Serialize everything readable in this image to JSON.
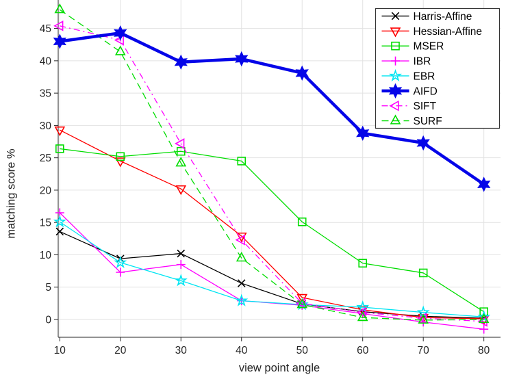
{
  "chart_data": {
    "type": "line",
    "title": "",
    "xlabel": "view point angle",
    "ylabel": "matching score %",
    "x": [
      10,
      20,
      30,
      40,
      50,
      60,
      70,
      80
    ],
    "xticks": [
      10,
      20,
      30,
      40,
      50,
      60,
      70,
      80
    ],
    "yticks": [
      0,
      5,
      10,
      15,
      20,
      25,
      30,
      35,
      40,
      45
    ],
    "xlim": [
      9.74,
      82.75
    ],
    "ylim": [
      -2.75,
      49.4
    ],
    "grid": true,
    "background": "#ffffff",
    "axis_color": "#262626",
    "grid_color": "#e2e2e2",
    "legend": {
      "position": "top-right",
      "border": true
    },
    "series": [
      {
        "name": "Harris-Affine",
        "color": "#000000",
        "line_style": "solid",
        "line_width": 1.3,
        "marker": "x",
        "values": [
          13.6,
          9.4,
          10.2,
          5.6,
          2.4,
          1.2,
          0.5,
          0.2
        ]
      },
      {
        "name": "Hessian-Affine",
        "color": "#ff0000",
        "line_style": "solid",
        "line_width": 1.3,
        "marker": "triangle-down",
        "values": [
          29.3,
          24.5,
          20.2,
          12.9,
          3.4,
          1.5,
          0.3,
          0.1
        ]
      },
      {
        "name": "MSER",
        "color": "#00dd00",
        "line_style": "solid",
        "line_width": 1.3,
        "marker": "square",
        "values": [
          26.4,
          25.2,
          26.0,
          24.5,
          15.1,
          8.7,
          7.2,
          1.2
        ]
      },
      {
        "name": "IBR",
        "color": "#ff00ff",
        "line_style": "solid",
        "line_width": 1.3,
        "marker": "plus",
        "values": [
          16.5,
          7.3,
          8.5,
          2.9,
          2.2,
          0.9,
          -0.4,
          -1.5
        ]
      },
      {
        "name": "EBR",
        "color": "#00e5f2",
        "line_style": "solid",
        "line_width": 1.3,
        "marker": "star5",
        "values": [
          15.1,
          8.8,
          6.0,
          2.9,
          2.3,
          1.9,
          1.1,
          0.4
        ]
      },
      {
        "name": "AIFD",
        "color": "#0505e8",
        "line_style": "solid",
        "line_width": 4.5,
        "marker": "hexagram",
        "values": [
          43.0,
          44.3,
          39.8,
          40.3,
          38.1,
          28.8,
          27.3,
          20.9
        ]
      },
      {
        "name": "SIFT",
        "color": "#ff00ff",
        "line_style": "dashdot",
        "line_width": 1.3,
        "marker": "triangle-left",
        "values": [
          45.4,
          43.2,
          27.2,
          12.3,
          2.5,
          1.1,
          0.2,
          -0.3
        ]
      },
      {
        "name": "SURF",
        "color": "#00dd00",
        "line_style": "dashed",
        "line_width": 1.3,
        "marker": "triangle-up",
        "values": [
          47.9,
          41.4,
          24.2,
          9.5,
          2.3,
          0.3,
          -0.1,
          0.0
        ]
      }
    ]
  }
}
